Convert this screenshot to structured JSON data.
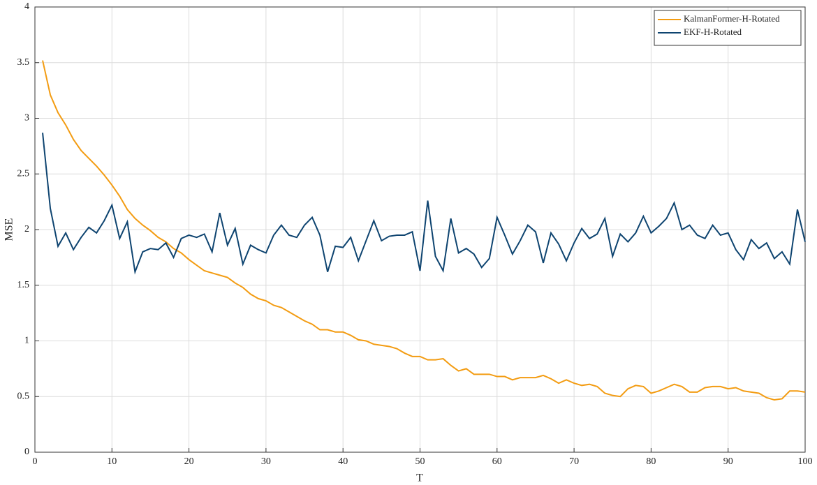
{
  "chart_data": {
    "type": "line",
    "x_label": "T",
    "y_label": "MSE",
    "x": [
      1,
      2,
      3,
      4,
      5,
      6,
      7,
      8,
      9,
      10,
      11,
      12,
      13,
      14,
      15,
      16,
      17,
      18,
      19,
      20,
      21,
      22,
      23,
      24,
      25,
      26,
      27,
      28,
      29,
      30,
      31,
      32,
      33,
      34,
      35,
      36,
      37,
      38,
      39,
      40,
      41,
      42,
      43,
      44,
      45,
      46,
      47,
      48,
      49,
      50,
      51,
      52,
      53,
      54,
      55,
      56,
      57,
      58,
      59,
      60,
      61,
      62,
      63,
      64,
      65,
      66,
      67,
      68,
      69,
      70,
      71,
      72,
      73,
      74,
      75,
      76,
      77,
      78,
      79,
      80,
      81,
      82,
      83,
      84,
      85,
      86,
      87,
      88,
      89,
      90,
      91,
      92,
      93,
      94,
      95,
      96,
      97,
      98,
      99,
      100
    ],
    "series": [
      {
        "name": "KalmanFormer-H-Rotated",
        "color": "#f39c12",
        "values": [
          3.52,
          3.21,
          3.05,
          2.94,
          2.81,
          2.71,
          2.64,
          2.57,
          2.49,
          2.4,
          2.3,
          2.18,
          2.1,
          2.04,
          1.99,
          1.93,
          1.89,
          1.83,
          1.79,
          1.73,
          1.68,
          1.63,
          1.61,
          1.59,
          1.57,
          1.52,
          1.48,
          1.42,
          1.38,
          1.36,
          1.32,
          1.3,
          1.26,
          1.22,
          1.18,
          1.15,
          1.1,
          1.1,
          1.08,
          1.08,
          1.05,
          1.01,
          1.0,
          0.97,
          0.96,
          0.95,
          0.93,
          0.89,
          0.86,
          0.86,
          0.83,
          0.83,
          0.84,
          0.78,
          0.73,
          0.75,
          0.7,
          0.7,
          0.7,
          0.68,
          0.68,
          0.65,
          0.67,
          0.67,
          0.67,
          0.69,
          0.66,
          0.62,
          0.65,
          0.62,
          0.6,
          0.61,
          0.59,
          0.53,
          0.51,
          0.5,
          0.57,
          0.6,
          0.59,
          0.53,
          0.55,
          0.58,
          0.61,
          0.59,
          0.54,
          0.54,
          0.58,
          0.59,
          0.59,
          0.57,
          0.58,
          0.55,
          0.54,
          0.53,
          0.49,
          0.47,
          0.48,
          0.55,
          0.55,
          0.54
        ]
      },
      {
        "name": "EKF-H-Rotated",
        "color": "#0e4470",
        "values": [
          2.87,
          2.19,
          1.85,
          1.97,
          1.82,
          1.93,
          2.02,
          1.97,
          2.08,
          2.22,
          1.92,
          2.07,
          1.62,
          1.8,
          1.83,
          1.82,
          1.88,
          1.75,
          1.92,
          1.95,
          1.93,
          1.96,
          1.8,
          2.15,
          1.86,
          2.01,
          1.69,
          1.86,
          1.82,
          1.79,
          1.95,
          2.04,
          1.95,
          1.93,
          2.04,
          2.11,
          1.95,
          1.62,
          1.85,
          1.84,
          1.93,
          1.72,
          1.9,
          2.08,
          1.9,
          1.94,
          1.95,
          1.95,
          1.98,
          1.63,
          2.26,
          1.76,
          1.63,
          2.1,
          1.79,
          1.83,
          1.78,
          1.66,
          1.74,
          2.11,
          1.95,
          1.78,
          1.9,
          2.04,
          1.98,
          1.7,
          1.97,
          1.87,
          1.72,
          1.88,
          2.01,
          1.92,
          1.96,
          2.1,
          1.76,
          1.96,
          1.89,
          1.97,
          2.12,
          1.97,
          2.03,
          2.1,
          2.24,
          2.0,
          2.04,
          1.95,
          1.92,
          2.04,
          1.95,
          1.97,
          1.82,
          1.73,
          1.91,
          1.83,
          1.88,
          1.74,
          1.8,
          1.69,
          2.18,
          1.89
        ]
      }
    ],
    "xlim": [
      0,
      100
    ],
    "xticks": [
      0,
      10,
      20,
      30,
      40,
      50,
      60,
      70,
      80,
      90,
      100
    ],
    "ylim": [
      0,
      4
    ],
    "yticks": [
      0,
      0.5,
      1,
      1.5,
      2,
      2.5,
      3,
      3.5,
      4
    ],
    "grid": true,
    "legend": "top-right"
  }
}
